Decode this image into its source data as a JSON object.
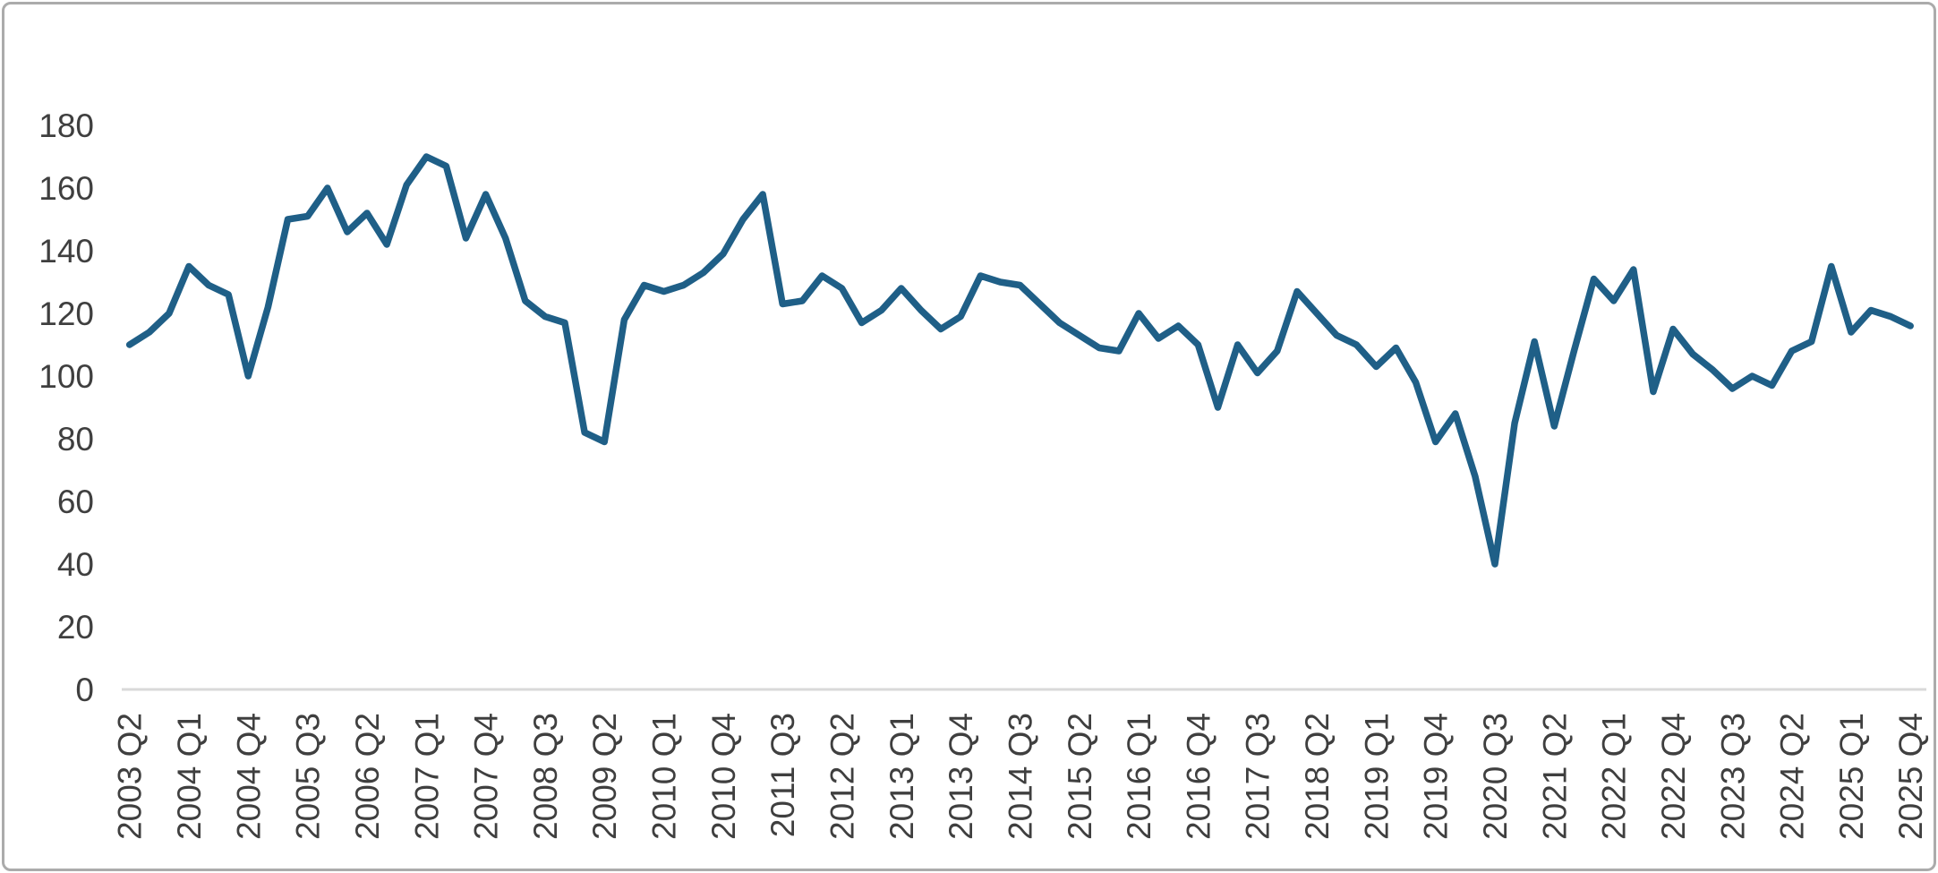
{
  "page": {
    "background_color": "#ffffff",
    "frame_border_color": "#ababab"
  },
  "chart_data": {
    "type": "line",
    "title": "",
    "xlabel": "",
    "ylabel": "",
    "legend": "none",
    "grid": "off",
    "line_color": "#1f5f87",
    "axis_line_color": "#d9d9d9",
    "tick_text_color": "#3f3f3f",
    "ylim": [
      0,
      180
    ],
    "y_ticks": [
      0,
      20,
      40,
      60,
      80,
      100,
      120,
      140,
      160,
      180
    ],
    "x_tick_every": 3,
    "x_tick_labels": [
      "2003 Q2",
      "2004 Q1",
      "2004 Q4",
      "2005 Q3",
      "2006 Q2",
      "2007 Q1",
      "2007 Q4",
      "2008 Q3",
      "2009 Q2",
      "2010 Q1",
      "2010 Q4",
      "2011 Q3",
      "2012 Q2",
      "2013 Q1",
      "2013 Q4",
      "2014 Q3",
      "2015 Q2",
      "2016 Q1",
      "2016 Q4",
      "2017 Q3",
      "2018 Q2",
      "2019 Q1",
      "2019 Q4",
      "2020 Q3",
      "2021 Q2",
      "2022 Q1",
      "2022 Q4",
      "2023 Q3",
      "2024 Q2",
      "2025 Q1",
      "2025 Q4"
    ],
    "categories": [
      "2003 Q2",
      "2003 Q3",
      "2003 Q4",
      "2004 Q1",
      "2004 Q2",
      "2004 Q3",
      "2004 Q4",
      "2005 Q1",
      "2005 Q2",
      "2005 Q3",
      "2005 Q4",
      "2006 Q1",
      "2006 Q2",
      "2006 Q3",
      "2006 Q4",
      "2007 Q1",
      "2007 Q2",
      "2007 Q3",
      "2007 Q4",
      "2008 Q1",
      "2008 Q2",
      "2008 Q3",
      "2008 Q4",
      "2009 Q1",
      "2009 Q2",
      "2009 Q3",
      "2009 Q4",
      "2010 Q1",
      "2010 Q2",
      "2010 Q3",
      "2010 Q4",
      "2011 Q1",
      "2011 Q2",
      "2011 Q3",
      "2011 Q4",
      "2012 Q1",
      "2012 Q2",
      "2012 Q3",
      "2012 Q4",
      "2013 Q1",
      "2013 Q2",
      "2013 Q3",
      "2013 Q4",
      "2014 Q1",
      "2014 Q2",
      "2014 Q3",
      "2014 Q4",
      "2015 Q1",
      "2015 Q2",
      "2015 Q3",
      "2015 Q4",
      "2016 Q1",
      "2016 Q2",
      "2016 Q3",
      "2016 Q4",
      "2017 Q1",
      "2017 Q2",
      "2017 Q3",
      "2017 Q4",
      "2018 Q1",
      "2018 Q2",
      "2018 Q3",
      "2018 Q4",
      "2019 Q1",
      "2019 Q2",
      "2019 Q3",
      "2019 Q4",
      "2020 Q1",
      "2020 Q2",
      "2020 Q3",
      "2020 Q4",
      "2021 Q1",
      "2021 Q2",
      "2021 Q3",
      "2021 Q4",
      "2022 Q1",
      "2022 Q2",
      "2022 Q3",
      "2022 Q4",
      "2023 Q1",
      "2023 Q2",
      "2023 Q3",
      "2023 Q4",
      "2024 Q1",
      "2024 Q2",
      "2024 Q3",
      "2024 Q4",
      "2025 Q1",
      "2025 Q2",
      "2025 Q3",
      "2025 Q4"
    ],
    "values": [
      110,
      114,
      120,
      135,
      129,
      126,
      100,
      122,
      150,
      151,
      160,
      146,
      152,
      142,
      161,
      170,
      167,
      144,
      158,
      144,
      124,
      119,
      117,
      82,
      79,
      118,
      129,
      127,
      129,
      133,
      139,
      150,
      158,
      123,
      124,
      132,
      128,
      117,
      121,
      128,
      121,
      115,
      119,
      132,
      130,
      129,
      123,
      117,
      113,
      109,
      108,
      120,
      112,
      116,
      110,
      90,
      110,
      101,
      108,
      127,
      120,
      113,
      110,
      103,
      109,
      98,
      79,
      88,
      68,
      40,
      85,
      111,
      84,
      108,
      131,
      124,
      134,
      95,
      115,
      107,
      102,
      96,
      100,
      97,
      108,
      111,
      135,
      114,
      121,
      119,
      116
    ]
  }
}
